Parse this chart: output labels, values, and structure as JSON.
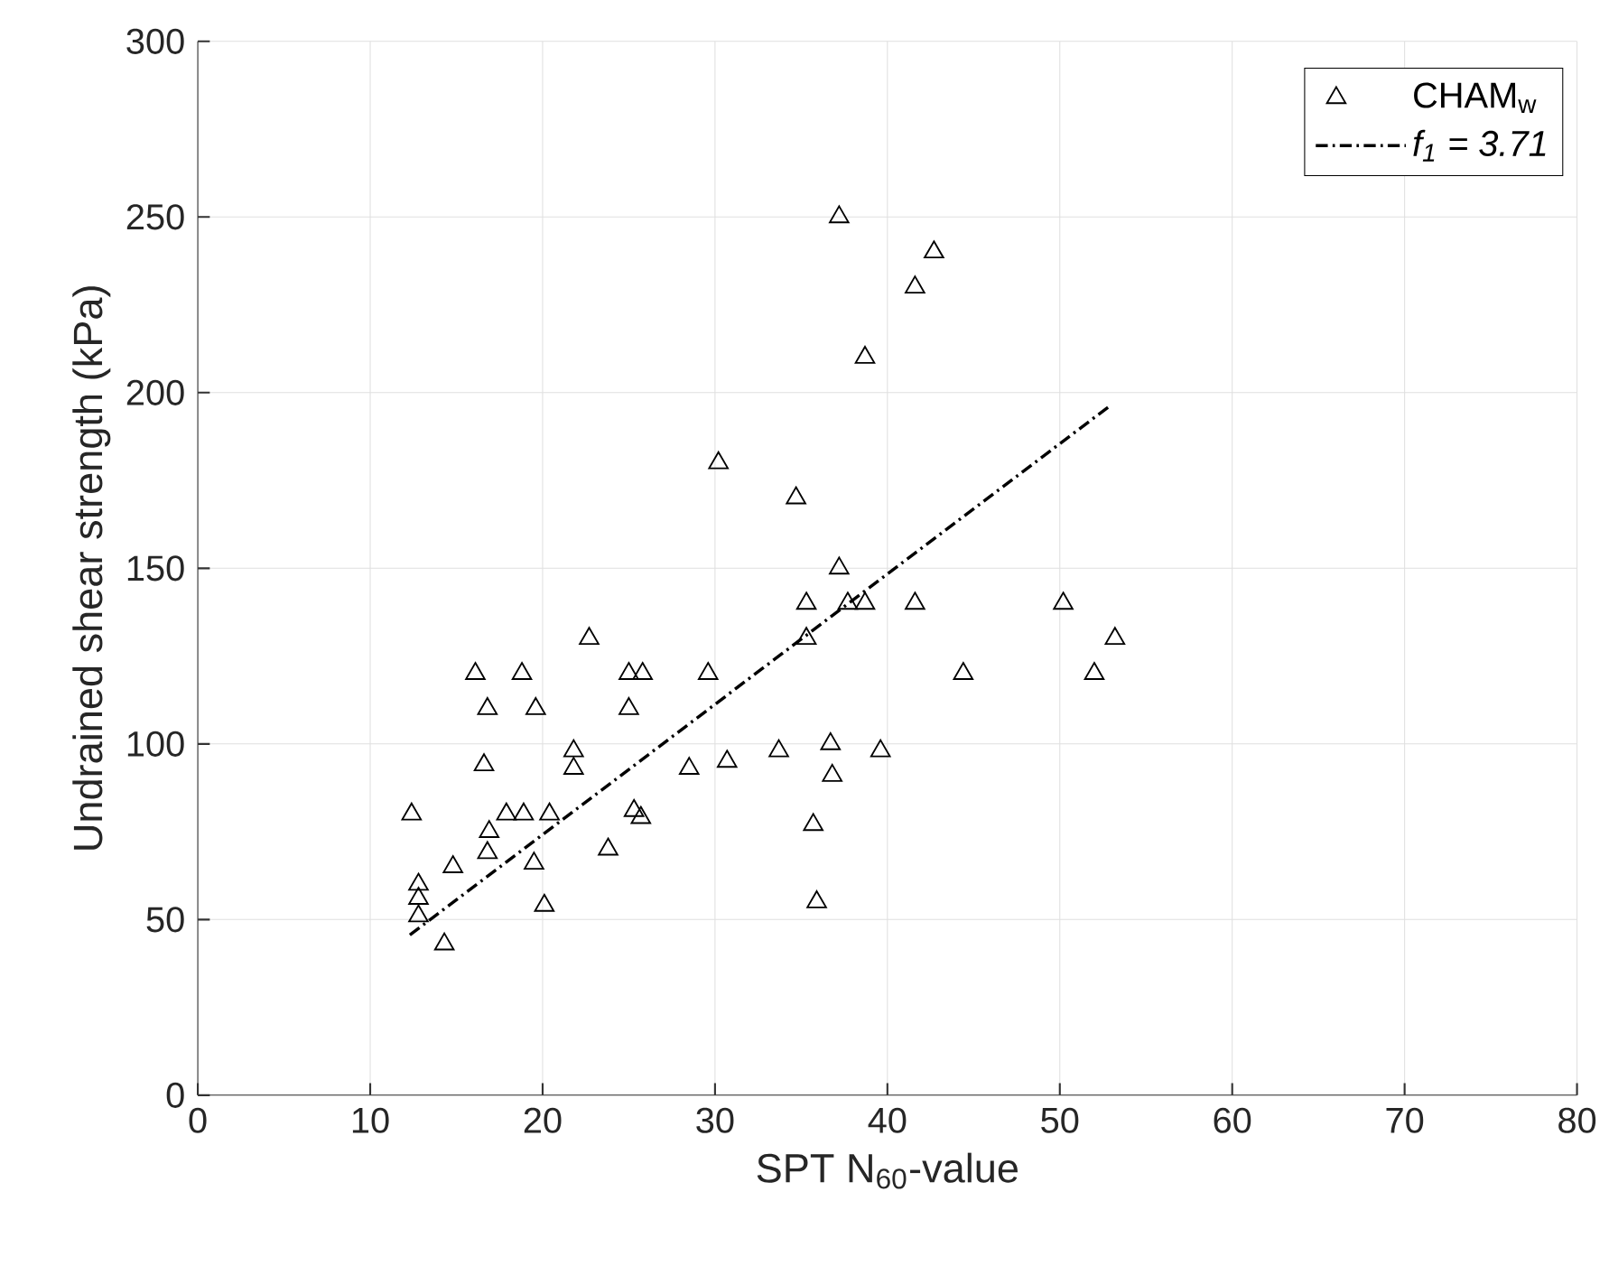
{
  "chart_data": {
    "type": "scatter",
    "xlabel": "SPT N$_{60}$-value",
    "ylabel": "Undrained shear strength (kPa)",
    "xlim": [
      0,
      80
    ],
    "ylim": [
      0,
      300
    ],
    "xticks": [
      0,
      10,
      20,
      30,
      40,
      50,
      60,
      70,
      80
    ],
    "yticks": [
      0,
      50,
      100,
      150,
      200,
      250,
      300
    ],
    "grid": true,
    "legend": "top right",
    "series": [
      {
        "name": "CHAM$_{w}$",
        "marker": "triangle",
        "color": "#000000",
        "x": [
          12.4,
          12.8,
          12.8,
          12.8,
          14.3,
          14.8,
          16.1,
          16.6,
          16.8,
          16.9,
          16.8,
          17.9,
          18.9,
          18.8,
          19.6,
          19.5,
          20.1,
          20.4,
          21.8,
          22.7,
          21.8,
          23.8,
          25.0,
          25.8,
          25.0,
          25.3,
          25.7,
          28.5,
          29.6,
          30.7,
          30.2,
          33.7,
          34.7,
          35.3,
          35.3,
          35.7,
          35.9,
          36.7,
          36.8,
          37.2,
          37.2,
          37.7,
          38.7,
          38.7,
          39.6,
          41.6,
          41.6,
          42.7,
          44.4,
          50.2,
          52.0,
          53.2
        ],
        "values": [
          80,
          60,
          56,
          51,
          43,
          65,
          120,
          94,
          110,
          75,
          69,
          80,
          80,
          120,
          110,
          66,
          54,
          80,
          98,
          130,
          93,
          70,
          120,
          120,
          110,
          81,
          79,
          93,
          120,
          95,
          180,
          98,
          170,
          140,
          130,
          77,
          55,
          100,
          91,
          250,
          150,
          140,
          140,
          210,
          98,
          140,
          230,
          240,
          120,
          140,
          120,
          130
        ]
      },
      {
        "name": "f$_{1}$ = 3.71",
        "type": "line",
        "marker": "none",
        "line_style": "dashdot",
        "color": "#000000",
        "x": [
          12.3,
          53.0
        ],
        "values": [
          45.6,
          196.6
        ]
      }
    ]
  }
}
